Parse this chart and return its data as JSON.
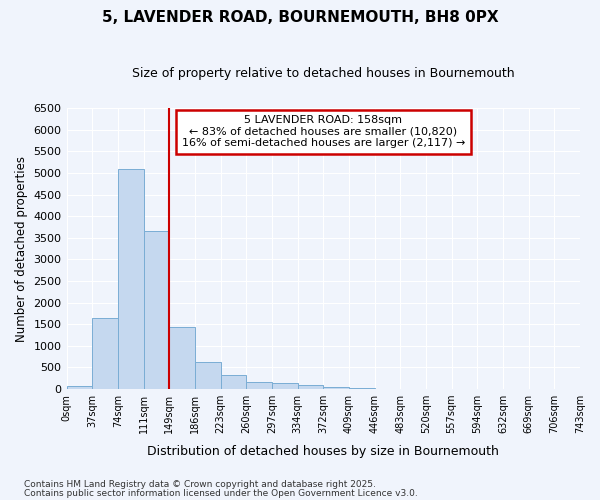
{
  "title": "5, LAVENDER ROAD, BOURNEMOUTH, BH8 0PX",
  "subtitle": "Size of property relative to detached houses in Bournemouth",
  "xlabel": "Distribution of detached houses by size in Bournemouth",
  "ylabel": "Number of detached properties",
  "bar_values": [
    60,
    1650,
    5100,
    3650,
    1430,
    620,
    320,
    160,
    140,
    95,
    50,
    25,
    8,
    0,
    0,
    0,
    0,
    0,
    0,
    0
  ],
  "bin_labels": [
    "0sqm",
    "37sqm",
    "74sqm",
    "111sqm",
    "149sqm",
    "186sqm",
    "223sqm",
    "260sqm",
    "297sqm",
    "334sqm",
    "372sqm",
    "409sqm",
    "446sqm",
    "483sqm",
    "520sqm",
    "557sqm",
    "594sqm",
    "632sqm",
    "669sqm",
    "706sqm",
    "743sqm"
  ],
  "bar_color": "#c5d8ef",
  "bar_edge_color": "#7aadd4",
  "background_color": "#f0f4fc",
  "plot_bg_color": "#f0f4fc",
  "grid_color": "#ffffff",
  "property_line_label": "5 LAVENDER ROAD: 158sqm",
  "annotation_line1": "← 83% of detached houses are smaller (10,820)",
  "annotation_line2": "16% of semi-detached houses are larger (2,117) →",
  "annotation_box_color": "#ffffff",
  "annotation_border_color": "#cc0000",
  "vline_color": "#cc0000",
  "vline_x_bin": 4,
  "ylim": [
    0,
    6500
  ],
  "yticks": [
    0,
    500,
    1000,
    1500,
    2000,
    2500,
    3000,
    3500,
    4000,
    4500,
    5000,
    5500,
    6000,
    6500
  ],
  "footnote1": "Contains HM Land Registry data © Crown copyright and database right 2025.",
  "footnote2": "Contains public sector information licensed under the Open Government Licence v3.0.",
  "bin_width": 37,
  "num_bins": 20
}
